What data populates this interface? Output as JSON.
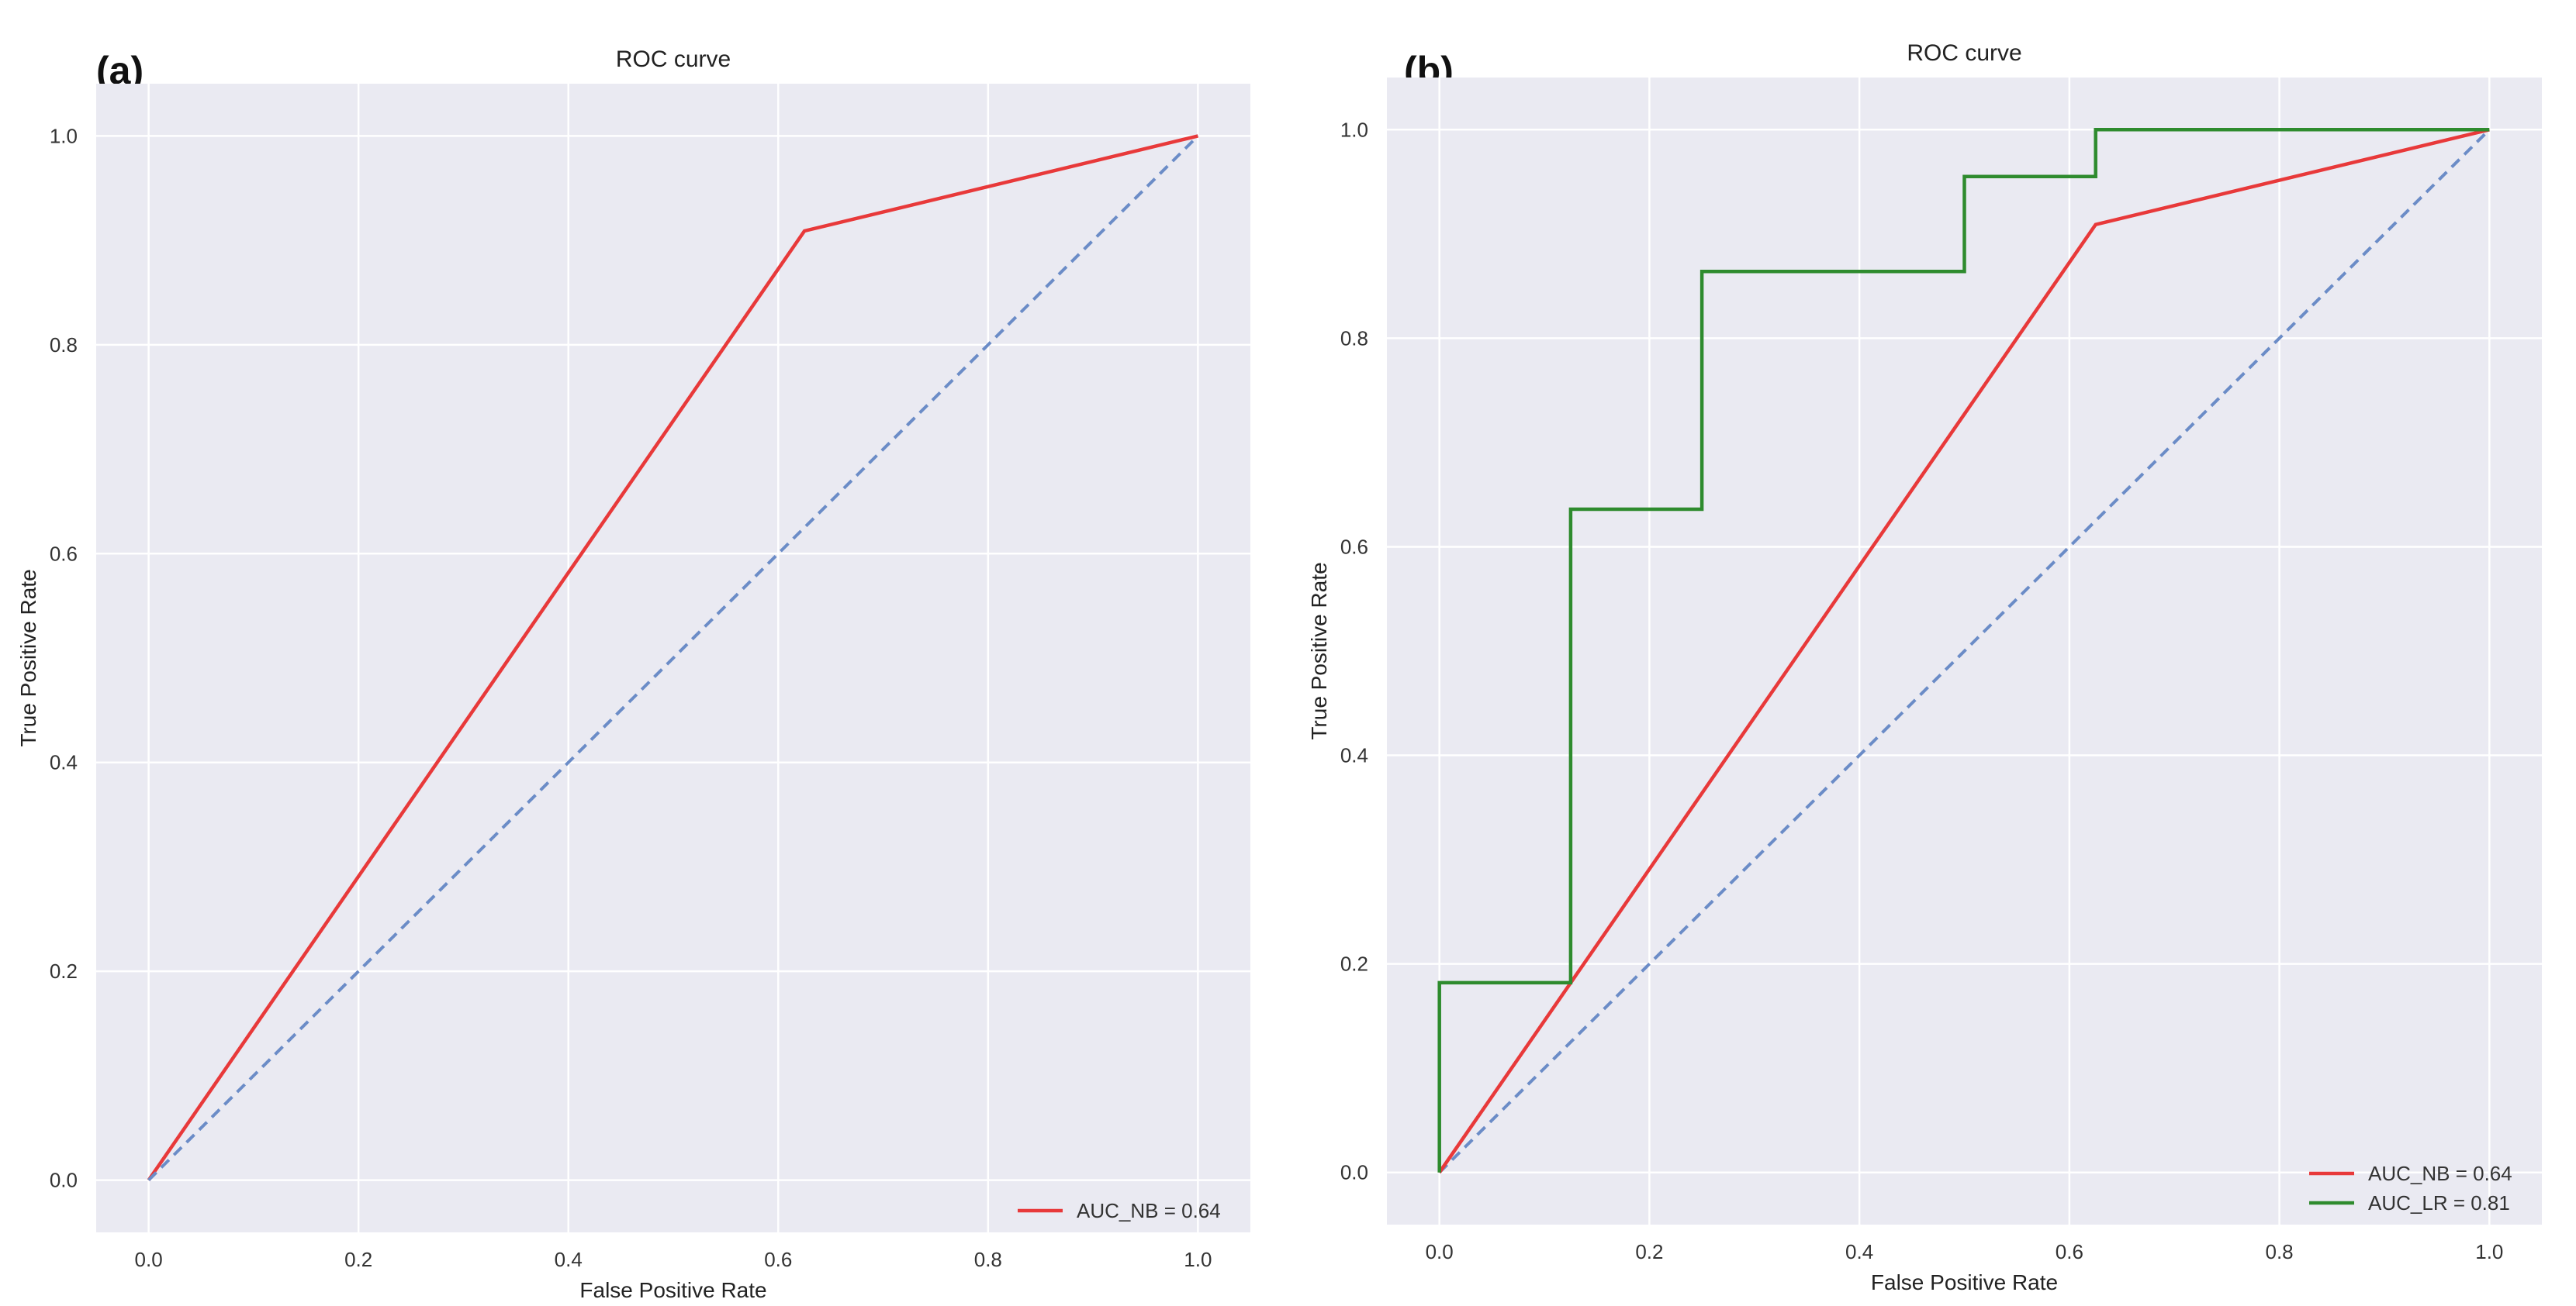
{
  "chart_data": [
    {
      "panel": "(a)",
      "type": "line",
      "title": "ROC curve",
      "xlabel": "False Positive Rate",
      "ylabel": "True Positive Rate",
      "xlim": [
        -0.05,
        1.05
      ],
      "ylim": [
        -0.05,
        1.05
      ],
      "xticks": [
        "0.0",
        "0.2",
        "0.4",
        "0.6",
        "0.8",
        "1.0"
      ],
      "yticks": [
        "0.0",
        "0.2",
        "0.4",
        "0.6",
        "0.8",
        "1.0"
      ],
      "grid": true,
      "legend_position": "bottom-right",
      "series": [
        {
          "name": "AUC_NB = 0.64",
          "color": "#e8393a",
          "dashed": false,
          "x": [
            0.0,
            0.625,
            1.0
          ],
          "y": [
            0.0,
            0.909,
            1.0
          ]
        },
        {
          "name": "chance",
          "color": "#6b8cc7",
          "dashed": true,
          "in_legend": false,
          "x": [
            0.0,
            1.0
          ],
          "y": [
            0.0,
            1.0
          ]
        }
      ]
    },
    {
      "panel": "(b)",
      "type": "line",
      "title": "ROC curve",
      "xlabel": "False Positive Rate",
      "ylabel": "True Positive Rate",
      "xlim": [
        -0.05,
        1.05
      ],
      "ylim": [
        -0.05,
        1.05
      ],
      "xticks": [
        "0.0",
        "0.2",
        "0.4",
        "0.6",
        "0.8",
        "1.0"
      ],
      "yticks": [
        "0.0",
        "0.2",
        "0.4",
        "0.6",
        "0.8",
        "1.0"
      ],
      "grid": true,
      "legend_position": "bottom-right",
      "series": [
        {
          "name": "chance",
          "color": "#6b8cc7",
          "dashed": true,
          "in_legend": false,
          "x": [
            0.0,
            1.0
          ],
          "y": [
            0.0,
            1.0
          ]
        },
        {
          "name": "AUC_NB = 0.64",
          "color": "#e8393a",
          "dashed": false,
          "x": [
            0.0,
            0.625,
            1.0
          ],
          "y": [
            0.0,
            0.909,
            1.0
          ]
        },
        {
          "name": "AUC_LR = 0.81",
          "color": "#2e8b2e",
          "dashed": false,
          "x": [
            0.0,
            0.0,
            0.125,
            0.125,
            0.25,
            0.25,
            0.5,
            0.5,
            0.625,
            0.625,
            1.0
          ],
          "y": [
            0.0,
            0.182,
            0.182,
            0.636,
            0.636,
            0.864,
            0.864,
            0.955,
            0.955,
            1.0,
            1.0
          ]
        }
      ]
    }
  ]
}
